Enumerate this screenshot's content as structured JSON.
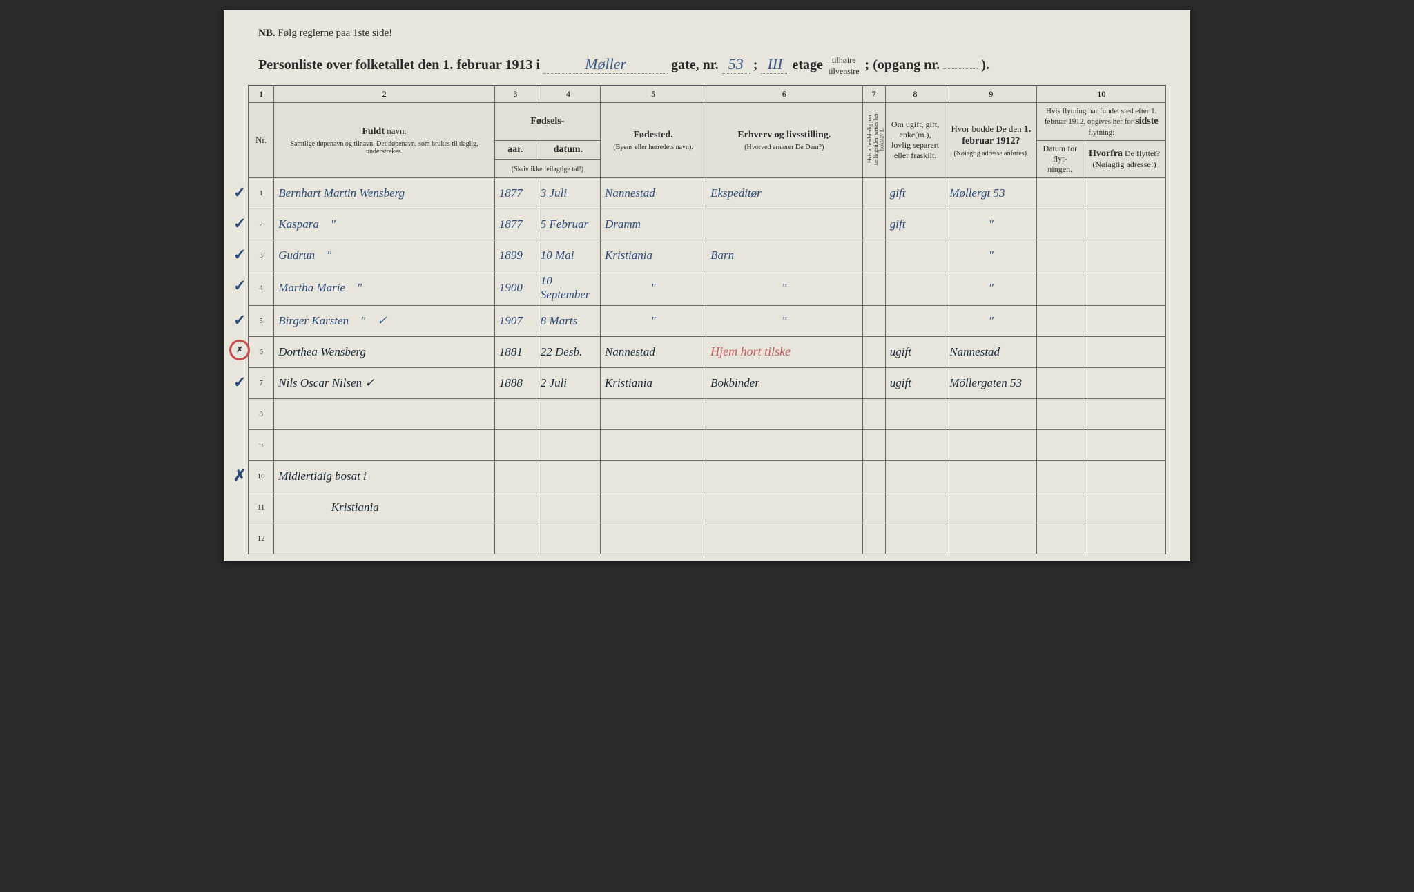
{
  "document": {
    "background_color": "#e8e5dc",
    "page_bg": "#2a2a2a"
  },
  "nb_header": {
    "prefix": "NB.",
    "text": "Følg reglerne paa 1ste side!"
  },
  "title": {
    "text_1": "Personliste over folketallet den 1. februar 1913 i",
    "street_fill": "Møller",
    "text_2": "gate, nr.",
    "street_nr": "53",
    "text_3": ";",
    "etage_fill": "III",
    "text_4": "etage",
    "fraction_top": "tilhøire",
    "fraction_bot": "tilvenstre",
    "text_5": "; (opgang nr.",
    "opgang_fill": "",
    "text_6": ")."
  },
  "col_numbers": [
    "1",
    "2",
    "3",
    "4",
    "5",
    "6",
    "7",
    "8",
    "9",
    "10"
  ],
  "headers": {
    "nr": "Nr.",
    "name_bold": "Fuldt",
    "name_word": "navn.",
    "name_sub": "Samtlige døpenavn og tilnavn. Det døpenavn, som brukes til daglig, understrekes.",
    "birth_title": "Fødsels-",
    "birth_year": "aar.",
    "birth_date": "datum.",
    "birth_sub": "(Skriv ikke feilagtige tal!)",
    "birthplace_bold": "Fødested.",
    "birthplace_sub": "(Byens eller herredets navn).",
    "occupation_bold": "Erhverv og livsstilling.",
    "occupation_sub": "(Hvorved ernærer De Dem?)",
    "col7": "Hvis arbeidsledig paa tællingstiden sættes her bokstav L.",
    "marital": "Om ugift, gift, enke(m.), lovlig separert eller fraskilt.",
    "residence_bold": "Hvor bodde De den 1. februar 1912?",
    "residence_sub": "(Nøiagtig adresse anføres).",
    "move_intro": "Hvis flytning har fundet sted efter 1. februar 1912, opgives her for sidste flytning:",
    "move_date": "Datum for flyt-ningen.",
    "move_from_bold": "Hvorfra",
    "move_from_rest": "De flyttet? (Nøiagtig adresse!)"
  },
  "ink_colors": {
    "blue_ink": "#2a4a7a",
    "dark_ink": "#1a2a3a",
    "red_ink": "#c05a5a",
    "red_circle": "#c84a4a"
  },
  "rows": [
    {
      "nr": "1",
      "mark": "✓",
      "mark_type": "check",
      "name": "Bernhart Martin Wensberg",
      "year": "1877",
      "date": "3 Juli",
      "birthplace": "Nannestad",
      "occupation": "Ekspeditør",
      "marital": "gift",
      "residence": "Møllergt 53"
    },
    {
      "nr": "2",
      "mark": "✓",
      "mark_type": "check",
      "name": "Kaspara    \"",
      "year": "1877",
      "date": "5 Februar",
      "birthplace": "Dramm",
      "occupation": "",
      "marital": "gift",
      "residence": "\""
    },
    {
      "nr": "3",
      "mark": "✓",
      "mark_type": "check",
      "name": "Gudrun    \"",
      "year": "1899",
      "date": "10 Mai",
      "birthplace": "Kristiania",
      "occupation": "Barn",
      "marital": "",
      "residence": "\""
    },
    {
      "nr": "4",
      "mark": "✓",
      "mark_type": "check",
      "name": "Martha Marie    \"",
      "year": "1900",
      "date": "10 September",
      "birthplace": "\"",
      "occupation": "\"",
      "marital": "",
      "residence": "\""
    },
    {
      "nr": "5",
      "mark": "✓",
      "mark_type": "check",
      "name": "Birger Karsten    \"    ✓",
      "year": "1907",
      "date": "8 Marts",
      "birthplace": "\"",
      "occupation": "\"",
      "marital": "",
      "residence": "\""
    },
    {
      "nr": "6",
      "mark": "✗",
      "mark_type": "circle",
      "name": "Dorthea Wensberg",
      "year": "1881",
      "date": "22 Desb.",
      "birthplace": "Nannestad",
      "occupation_red": "Hjem hort tilske",
      "marital": "ugift",
      "residence": "Nannestad"
    },
    {
      "nr": "7",
      "mark": "✓",
      "mark_type": "check",
      "name": "Nils Oscar Nilsen ✓",
      "year": "1888",
      "date": "2 Juli",
      "birthplace": "Kristiania",
      "occupation_dark": "Bokbinder",
      "marital": "ugift",
      "residence": "Möllergaten 53"
    },
    {
      "nr": "8"
    },
    {
      "nr": "9"
    },
    {
      "nr": "10",
      "mark": "✗",
      "mark_type": "plain",
      "name": "Midlertidig bosat i"
    },
    {
      "nr": "11",
      "name": "                  Kristiania"
    },
    {
      "nr": "12"
    }
  ]
}
